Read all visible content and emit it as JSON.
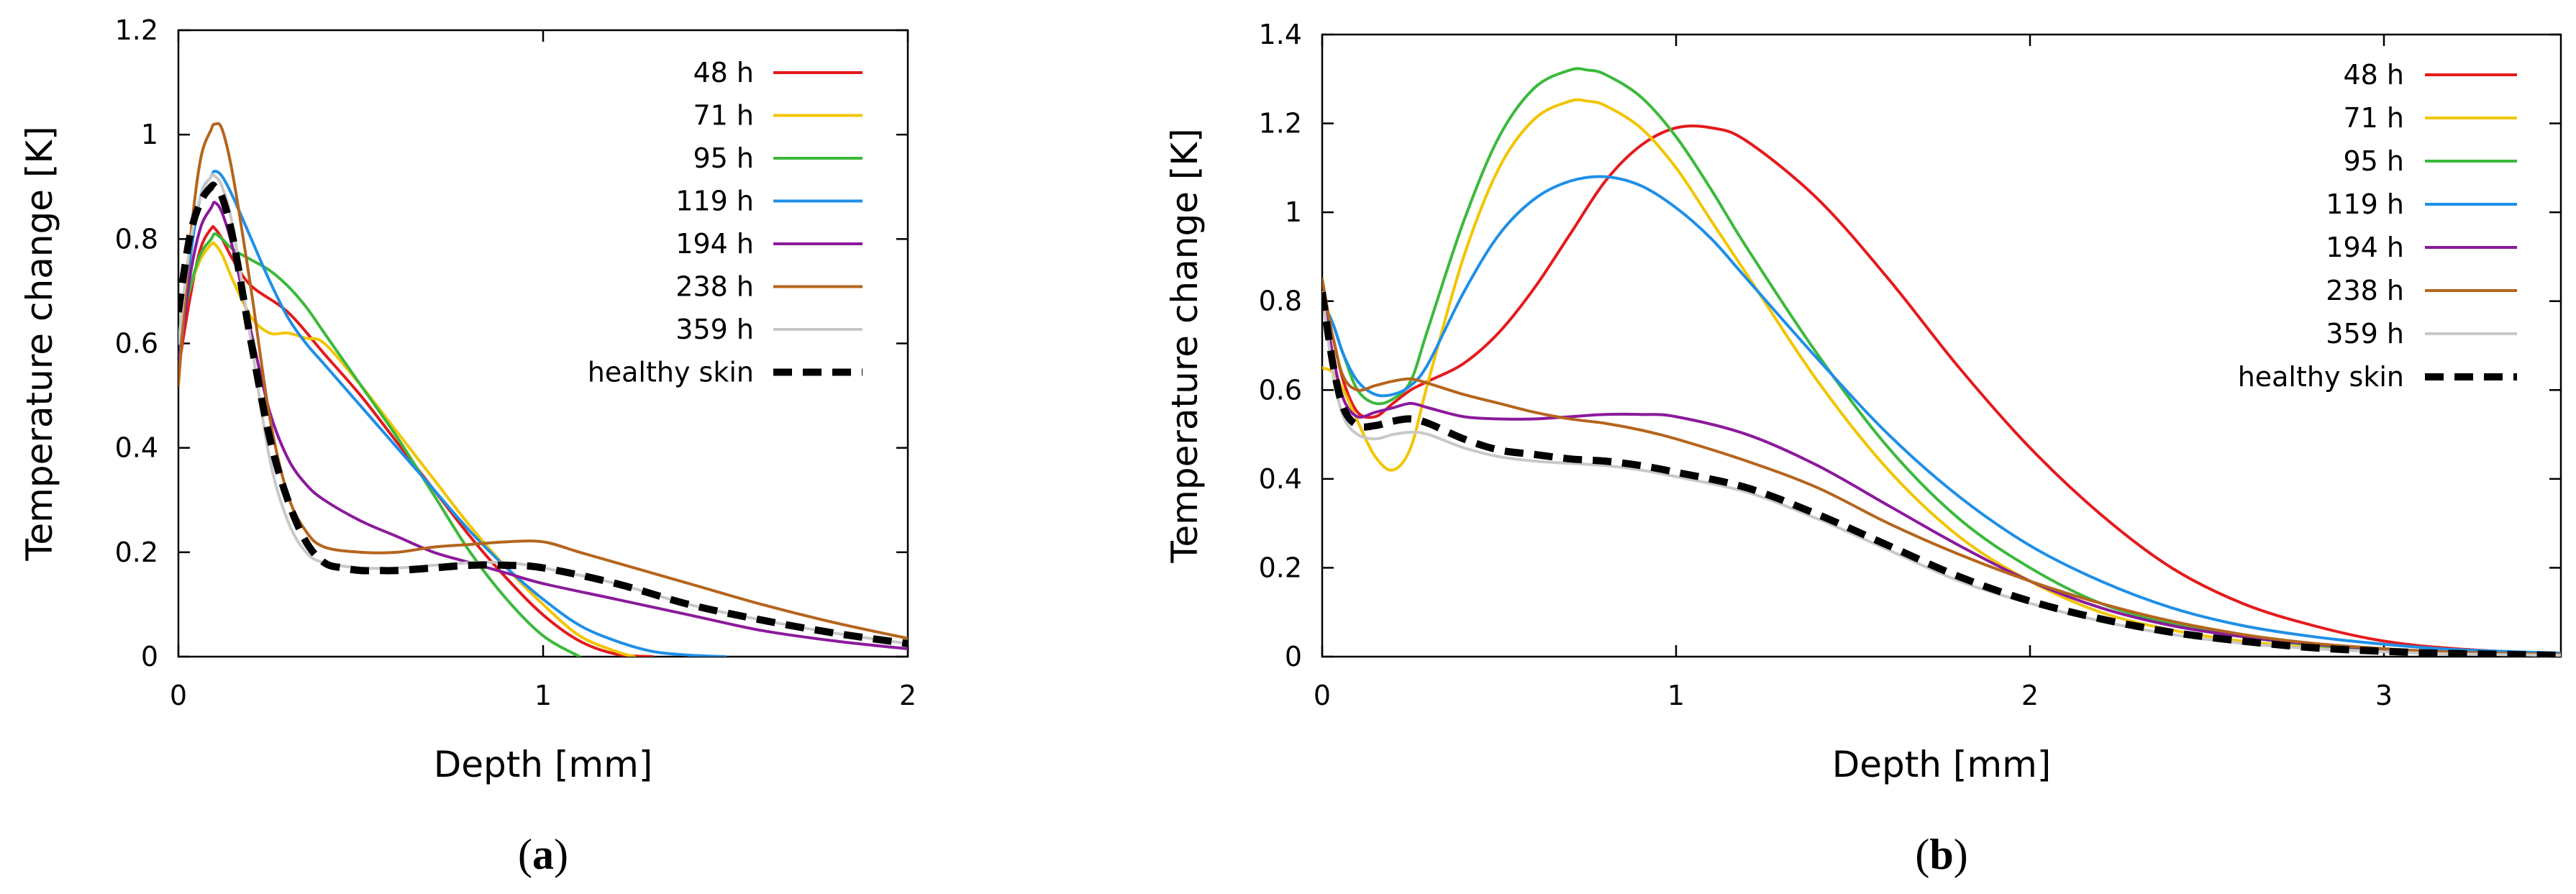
{
  "chart_data": [
    {
      "type": "line",
      "panel_label_open": "(",
      "panel_label_letter": "a",
      "panel_label_close": ")",
      "xlabel": "Depth [mm]",
      "ylabel": "Temperature change [K]",
      "xlim": [
        0,
        2
      ],
      "ylim": [
        0,
        1.2
      ],
      "x_ticks": [
        0,
        1,
        2
      ],
      "x_tick_labels": [
        "0",
        "1",
        "2"
      ],
      "y_ticks": [
        0,
        0.2,
        0.4,
        0.6,
        0.8,
        1.0,
        1.2
      ],
      "y_tick_labels": [
        "0",
        "0.2",
        "0.4",
        "0.6",
        "0.8",
        "1",
        "1.2"
      ],
      "grid": false,
      "legend_position": "top-right",
      "series": [
        {
          "name": "48 h",
          "color": "#e41a1c",
          "dash": false,
          "x": [
            0,
            0.03,
            0.06,
            0.09,
            0.1,
            0.12,
            0.15,
            0.2,
            0.3,
            0.4,
            0.5,
            0.6,
            0.7,
            0.8,
            0.9,
            1.0,
            1.1,
            1.2,
            1.3
          ],
          "y": [
            0.55,
            0.68,
            0.78,
            0.82,
            0.82,
            0.8,
            0.76,
            0.71,
            0.66,
            0.58,
            0.5,
            0.41,
            0.32,
            0.23,
            0.15,
            0.08,
            0.03,
            0.005,
            0
          ]
        },
        {
          "name": "71 h",
          "color": "#f2c500",
          "dash": false,
          "x": [
            0,
            0.03,
            0.06,
            0.09,
            0.1,
            0.12,
            0.15,
            0.2,
            0.25,
            0.3,
            0.35,
            0.4,
            0.5,
            0.6,
            0.7,
            0.8,
            0.9,
            1.0,
            1.1,
            1.2,
            1.25
          ],
          "y": [
            0.6,
            0.7,
            0.76,
            0.79,
            0.79,
            0.77,
            0.72,
            0.65,
            0.62,
            0.62,
            0.61,
            0.6,
            0.52,
            0.43,
            0.34,
            0.25,
            0.17,
            0.1,
            0.04,
            0.01,
            0
          ]
        },
        {
          "name": "95 h",
          "color": "#3cb93c",
          "dash": false,
          "x": [
            0,
            0.03,
            0.06,
            0.09,
            0.1,
            0.12,
            0.15,
            0.2,
            0.25,
            0.3,
            0.35,
            0.4,
            0.5,
            0.6,
            0.7,
            0.8,
            0.9,
            1.0,
            1.1
          ],
          "y": [
            0.6,
            0.7,
            0.77,
            0.8,
            0.81,
            0.8,
            0.78,
            0.76,
            0.74,
            0.71,
            0.67,
            0.62,
            0.52,
            0.42,
            0.31,
            0.2,
            0.11,
            0.04,
            0
          ]
        },
        {
          "name": "119 h",
          "color": "#1f8fe6",
          "dash": false,
          "x": [
            0,
            0.03,
            0.06,
            0.09,
            0.1,
            0.12,
            0.15,
            0.2,
            0.25,
            0.3,
            0.35,
            0.4,
            0.5,
            0.6,
            0.7,
            0.8,
            0.9,
            1.0,
            1.1,
            1.2,
            1.3,
            1.4,
            1.5
          ],
          "y": [
            0.55,
            0.75,
            0.88,
            0.92,
            0.93,
            0.92,
            0.88,
            0.8,
            0.72,
            0.65,
            0.6,
            0.56,
            0.48,
            0.4,
            0.32,
            0.24,
            0.17,
            0.11,
            0.06,
            0.03,
            0.01,
            0.003,
            0
          ]
        },
        {
          "name": "194 h",
          "color": "#8b1a9b",
          "dash": false,
          "x": [
            0,
            0.03,
            0.06,
            0.09,
            0.1,
            0.12,
            0.15,
            0.2,
            0.25,
            0.3,
            0.35,
            0.4,
            0.5,
            0.6,
            0.7,
            0.8,
            0.9,
            1.0,
            1.2,
            1.4,
            1.6,
            1.8,
            2.0
          ],
          "y": [
            0.55,
            0.72,
            0.82,
            0.86,
            0.87,
            0.85,
            0.78,
            0.62,
            0.47,
            0.38,
            0.33,
            0.3,
            0.26,
            0.23,
            0.2,
            0.18,
            0.16,
            0.14,
            0.11,
            0.08,
            0.05,
            0.03,
            0.015
          ]
        },
        {
          "name": "238 h",
          "color": "#b5651d",
          "dash": false,
          "x": [
            0,
            0.03,
            0.06,
            0.09,
            0.1,
            0.12,
            0.15,
            0.2,
            0.25,
            0.3,
            0.35,
            0.4,
            0.5,
            0.6,
            0.7,
            0.8,
            0.9,
            1.0,
            1.1,
            1.2,
            1.4,
            1.6,
            1.8,
            2.0
          ],
          "y": [
            0.52,
            0.78,
            0.95,
            1.01,
            1.02,
            1.01,
            0.92,
            0.7,
            0.46,
            0.31,
            0.24,
            0.21,
            0.2,
            0.2,
            0.21,
            0.215,
            0.22,
            0.22,
            0.2,
            0.18,
            0.14,
            0.1,
            0.065,
            0.035
          ]
        },
        {
          "name": "359 h",
          "color": "#c8c8c8",
          "dash": false,
          "x": [
            0,
            0.03,
            0.06,
            0.09,
            0.1,
            0.12,
            0.15,
            0.2,
            0.25,
            0.3,
            0.35,
            0.4,
            0.5,
            0.6,
            0.7,
            0.8,
            0.9,
            1.0,
            1.2,
            1.4,
            1.6,
            1.8,
            2.0
          ],
          "y": [
            0.6,
            0.78,
            0.88,
            0.92,
            0.92,
            0.9,
            0.82,
            0.6,
            0.38,
            0.26,
            0.2,
            0.18,
            0.17,
            0.17,
            0.175,
            0.18,
            0.18,
            0.17,
            0.14,
            0.1,
            0.07,
            0.045,
            0.025
          ]
        },
        {
          "name": "healthy skin",
          "color": "#000000",
          "dash": true,
          "x": [
            0,
            0.03,
            0.06,
            0.09,
            0.1,
            0.12,
            0.15,
            0.2,
            0.25,
            0.3,
            0.35,
            0.4,
            0.45,
            0.5,
            0.55,
            0.6,
            0.7,
            0.8,
            0.9,
            1.0,
            1.2,
            1.4,
            1.6,
            1.8,
            2.0
          ],
          "y": [
            0.66,
            0.8,
            0.87,
            0.9,
            0.9,
            0.88,
            0.8,
            0.6,
            0.42,
            0.3,
            0.22,
            0.18,
            0.17,
            0.165,
            0.165,
            0.165,
            0.17,
            0.175,
            0.175,
            0.17,
            0.14,
            0.1,
            0.07,
            0.045,
            0.025
          ]
        }
      ]
    },
    {
      "type": "line",
      "panel_label_open": "(",
      "panel_label_letter": "b",
      "panel_label_close": ")",
      "xlabel": "Depth [mm]",
      "ylabel": "Temperature change [K]",
      "xlim": [
        0,
        3.5
      ],
      "ylim": [
        0,
        1.4
      ],
      "x_ticks": [
        0,
        1,
        2,
        3
      ],
      "x_tick_labels": [
        "0",
        "1",
        "2",
        "3"
      ],
      "y_ticks": [
        0,
        0.2,
        0.4,
        0.6,
        0.8,
        1.0,
        1.2,
        1.4
      ],
      "y_tick_labels": [
        "0",
        "0.2",
        "0.4",
        "0.6",
        "0.8",
        "1",
        "1.2",
        "1.4"
      ],
      "grid": false,
      "legend_position": "top-right",
      "series": [
        {
          "name": "48 h",
          "color": "#e41a1c",
          "dash": false,
          "x": [
            0,
            0.03,
            0.06,
            0.1,
            0.15,
            0.2,
            0.25,
            0.3,
            0.4,
            0.5,
            0.6,
            0.7,
            0.8,
            0.9,
            1.0,
            1.1,
            1.2,
            1.4,
            1.6,
            1.8,
            2.0,
            2.2,
            2.4,
            2.6,
            2.8,
            3.0,
            3.2,
            3.5
          ],
          "y": [
            0.8,
            0.72,
            0.62,
            0.55,
            0.54,
            0.57,
            0.6,
            0.62,
            0.66,
            0.73,
            0.83,
            0.95,
            1.07,
            1.15,
            1.19,
            1.19,
            1.16,
            1.03,
            0.85,
            0.65,
            0.47,
            0.32,
            0.2,
            0.12,
            0.07,
            0.035,
            0.018,
            0.005
          ]
        },
        {
          "name": "71 h",
          "color": "#f2c500",
          "dash": false,
          "x": [
            0,
            0.03,
            0.06,
            0.1,
            0.15,
            0.2,
            0.25,
            0.3,
            0.4,
            0.5,
            0.6,
            0.7,
            0.75,
            0.8,
            0.9,
            1.0,
            1.1,
            1.2,
            1.4,
            1.6,
            1.8,
            2.0,
            2.2,
            2.4,
            2.6,
            2.8,
            3.0,
            3.2,
            3.5
          ],
          "y": [
            0.65,
            0.64,
            0.6,
            0.53,
            0.45,
            0.42,
            0.47,
            0.62,
            0.9,
            1.1,
            1.21,
            1.25,
            1.25,
            1.24,
            1.19,
            1.1,
            0.98,
            0.86,
            0.62,
            0.42,
            0.27,
            0.17,
            0.1,
            0.06,
            0.035,
            0.02,
            0.012,
            0.007,
            0.003
          ]
        },
        {
          "name": "95 h",
          "color": "#3cb93c",
          "dash": false,
          "x": [
            0,
            0.03,
            0.06,
            0.1,
            0.15,
            0.2,
            0.25,
            0.3,
            0.4,
            0.5,
            0.6,
            0.7,
            0.75,
            0.8,
            0.9,
            1.0,
            1.1,
            1.2,
            1.4,
            1.6,
            1.8,
            2.0,
            2.2,
            2.4,
            2.6,
            2.8,
            3.0,
            3.2,
            3.5
          ],
          "y": [
            0.8,
            0.75,
            0.68,
            0.6,
            0.57,
            0.58,
            0.62,
            0.74,
            0.98,
            1.17,
            1.28,
            1.32,
            1.32,
            1.31,
            1.26,
            1.17,
            1.05,
            0.92,
            0.68,
            0.47,
            0.31,
            0.2,
            0.12,
            0.075,
            0.045,
            0.026,
            0.015,
            0.008,
            0.004
          ]
        },
        {
          "name": "119 h",
          "color": "#1f8fe6",
          "dash": false,
          "x": [
            0,
            0.03,
            0.06,
            0.1,
            0.15,
            0.2,
            0.25,
            0.3,
            0.4,
            0.5,
            0.6,
            0.7,
            0.8,
            0.9,
            1.0,
            1.1,
            1.2,
            1.4,
            1.6,
            1.8,
            2.0,
            2.2,
            2.4,
            2.6,
            2.8,
            3.0,
            3.2,
            3.5
          ],
          "y": [
            0.8,
            0.75,
            0.68,
            0.62,
            0.59,
            0.59,
            0.61,
            0.66,
            0.82,
            0.95,
            1.03,
            1.07,
            1.08,
            1.06,
            1.01,
            0.94,
            0.85,
            0.67,
            0.5,
            0.36,
            0.25,
            0.17,
            0.11,
            0.07,
            0.045,
            0.028,
            0.016,
            0.008
          ]
        },
        {
          "name": "194 h",
          "color": "#8b1a9b",
          "dash": false,
          "x": [
            0,
            0.03,
            0.06,
            0.1,
            0.15,
            0.2,
            0.25,
            0.3,
            0.4,
            0.5,
            0.6,
            0.7,
            0.8,
            0.9,
            1.0,
            1.2,
            1.4,
            1.6,
            1.8,
            2.0,
            2.2,
            2.4,
            2.6,
            2.8,
            3.0,
            3.2,
            3.5
          ],
          "y": [
            0.82,
            0.68,
            0.58,
            0.54,
            0.55,
            0.56,
            0.57,
            0.56,
            0.54,
            0.535,
            0.535,
            0.54,
            0.545,
            0.545,
            0.54,
            0.5,
            0.43,
            0.34,
            0.25,
            0.17,
            0.11,
            0.07,
            0.045,
            0.028,
            0.017,
            0.01,
            0.004
          ]
        },
        {
          "name": "238 h",
          "color": "#b5651d",
          "dash": false,
          "x": [
            0,
            0.03,
            0.06,
            0.1,
            0.15,
            0.2,
            0.25,
            0.3,
            0.4,
            0.5,
            0.6,
            0.7,
            0.8,
            0.9,
            1.0,
            1.2,
            1.4,
            1.6,
            1.8,
            2.0,
            2.2,
            2.4,
            2.6,
            2.8,
            3.0,
            3.2,
            3.5
          ],
          "y": [
            0.85,
            0.72,
            0.63,
            0.6,
            0.61,
            0.62,
            0.625,
            0.615,
            0.59,
            0.57,
            0.55,
            0.535,
            0.525,
            0.51,
            0.49,
            0.44,
            0.38,
            0.3,
            0.23,
            0.17,
            0.12,
            0.08,
            0.05,
            0.03,
            0.018,
            0.01,
            0.005
          ]
        },
        {
          "name": "359 h",
          "color": "#c8c8c8",
          "dash": false,
          "x": [
            0,
            0.03,
            0.06,
            0.1,
            0.15,
            0.2,
            0.25,
            0.3,
            0.4,
            0.5,
            0.6,
            0.7,
            0.8,
            0.9,
            1.0,
            1.2,
            1.4,
            1.6,
            1.8,
            2.0,
            2.2,
            2.4,
            2.6,
            2.8,
            3.0,
            3.2,
            3.5
          ],
          "y": [
            0.82,
            0.64,
            0.54,
            0.5,
            0.49,
            0.5,
            0.505,
            0.5,
            0.47,
            0.45,
            0.44,
            0.435,
            0.43,
            0.42,
            0.405,
            0.37,
            0.31,
            0.24,
            0.17,
            0.12,
            0.08,
            0.05,
            0.03,
            0.018,
            0.011,
            0.006,
            0.003
          ]
        },
        {
          "name": "healthy skin",
          "color": "#000000",
          "dash": true,
          "x": [
            0,
            0.03,
            0.06,
            0.1,
            0.15,
            0.2,
            0.25,
            0.3,
            0.4,
            0.5,
            0.6,
            0.7,
            0.8,
            0.9,
            1.0,
            1.2,
            1.4,
            1.6,
            1.8,
            2.0,
            2.2,
            2.4,
            2.6,
            2.8,
            3.0,
            3.2,
            3.5
          ],
          "y": [
            0.82,
            0.66,
            0.56,
            0.52,
            0.52,
            0.53,
            0.535,
            0.525,
            0.49,
            0.465,
            0.455,
            0.445,
            0.44,
            0.43,
            0.415,
            0.38,
            0.32,
            0.25,
            0.18,
            0.125,
            0.085,
            0.055,
            0.035,
            0.02,
            0.012,
            0.007,
            0.003
          ]
        }
      ]
    }
  ]
}
